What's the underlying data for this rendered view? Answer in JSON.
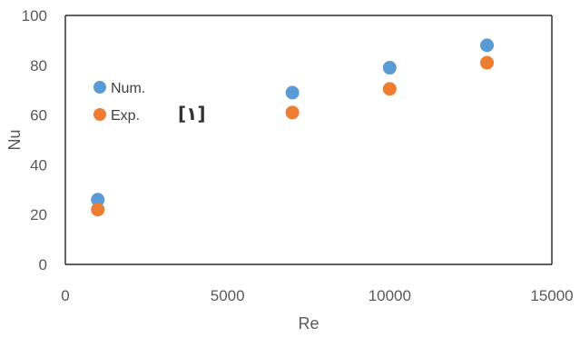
{
  "chart_data": {
    "type": "scatter",
    "xlabel": "Re",
    "ylabel": "Nu",
    "xlim": [
      0,
      15000
    ],
    "ylim": [
      0,
      100
    ],
    "xticks": [
      "0",
      "5000",
      "10000",
      "15000"
    ],
    "yticks": [
      "0",
      "20",
      "40",
      "60",
      "80",
      "100"
    ],
    "grid": false,
    "legend_position": "left",
    "annotation": "[١]",
    "series": [
      {
        "name": "Num.",
        "color": "#5B9BD5",
        "x": [
          1000,
          7000,
          10000,
          13000
        ],
        "y": [
          26,
          69,
          79,
          88
        ]
      },
      {
        "name": "Exp.",
        "color": "#ED7D31",
        "x": [
          1000,
          7000,
          10000,
          13000
        ],
        "y": [
          22,
          61,
          70.5,
          81
        ]
      }
    ]
  }
}
